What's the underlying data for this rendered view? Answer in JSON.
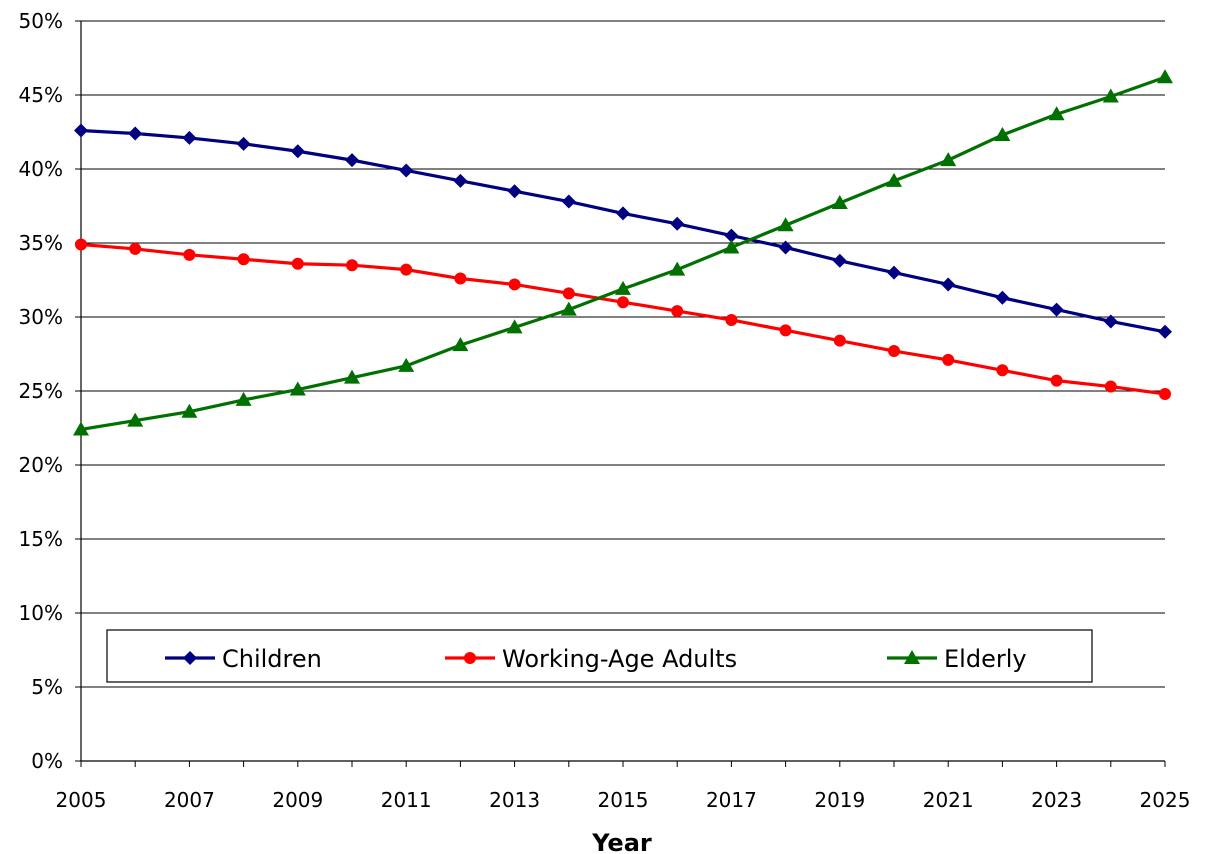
{
  "chart_data": {
    "type": "line",
    "title": "",
    "xlabel": "Year",
    "ylabel": "",
    "x": [
      2005,
      2006,
      2007,
      2008,
      2009,
      2010,
      2011,
      2012,
      2013,
      2014,
      2015,
      2016,
      2017,
      2018,
      2019,
      2020,
      2021,
      2022,
      2023,
      2024,
      2025
    ],
    "x_tick_labels": [
      "2005",
      "2007",
      "2009",
      "2011",
      "2013",
      "2015",
      "2017",
      "2019",
      "2021",
      "2023",
      "2025"
    ],
    "y_tick_labels": [
      "0%",
      "5%",
      "10%",
      "15%",
      "20%",
      "25%",
      "30%",
      "35%",
      "40%",
      "45%",
      "50%"
    ],
    "xlim": [
      2005,
      2025
    ],
    "ylim": [
      0,
      50
    ],
    "y_unit": "%",
    "grid": "horizontal",
    "legend_position": "bottom-inside",
    "series": [
      {
        "name": "Children",
        "color": "#000080",
        "marker": "diamond",
        "values": [
          42.6,
          42.4,
          42.1,
          41.7,
          41.2,
          40.6,
          39.9,
          39.2,
          38.5,
          37.8,
          37.0,
          36.3,
          35.5,
          34.7,
          33.8,
          33.0,
          32.2,
          31.3,
          30.5,
          29.7,
          29.0
        ]
      },
      {
        "name": "Working-Age Adults",
        "color": "#FF0000",
        "marker": "circle",
        "values": [
          34.9,
          34.6,
          34.2,
          33.9,
          33.6,
          33.5,
          33.2,
          32.6,
          32.2,
          31.6,
          31.0,
          30.4,
          29.8,
          29.1,
          28.4,
          27.7,
          27.1,
          26.4,
          25.7,
          25.3,
          24.8
        ]
      },
      {
        "name": "Elderly",
        "color": "#007000",
        "marker": "triangle",
        "values": [
          22.4,
          23.0,
          23.6,
          24.4,
          25.1,
          25.9,
          26.7,
          28.1,
          29.3,
          30.5,
          31.9,
          33.2,
          34.7,
          36.2,
          37.7,
          39.2,
          40.6,
          42.3,
          43.7,
          44.9,
          46.2
        ]
      }
    ]
  }
}
